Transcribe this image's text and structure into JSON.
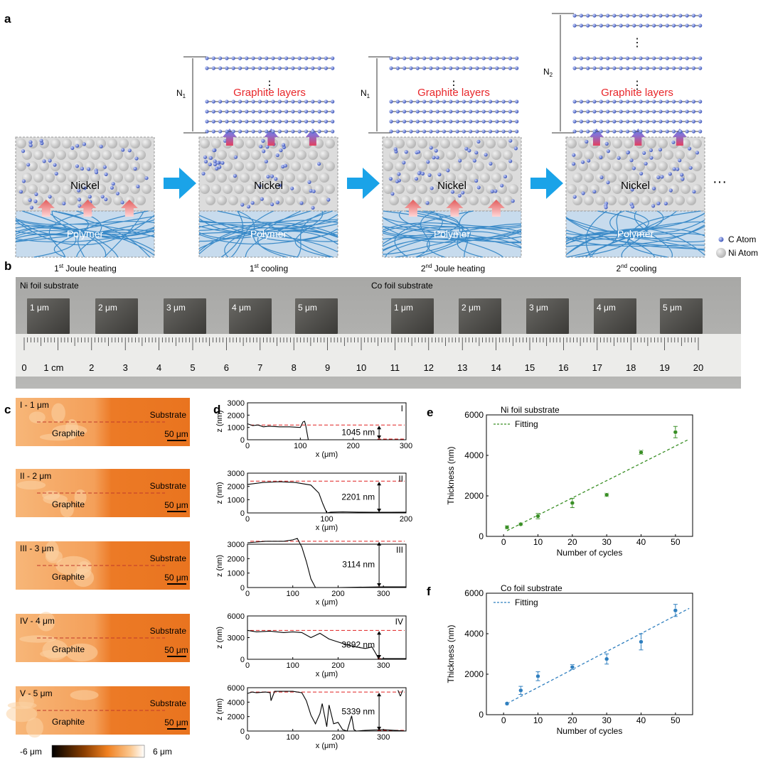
{
  "panel_letters": [
    "a",
    "b",
    "c",
    "d",
    "e",
    "f"
  ],
  "panel_a": {
    "graphite_label": "Graphite layers",
    "nickel_label": "Nickel",
    "polymer_label": "Polymer",
    "n1": "N",
    "n1_sub": "1",
    "n2": "N",
    "n2_sub": "2",
    "stages": [
      {
        "pre": "1",
        "sup": "st",
        "post": " Joule heating"
      },
      {
        "pre": "1",
        "sup": "st",
        "post": " cooling"
      },
      {
        "pre": "2",
        "sup": "nd",
        "post": " Joule heating"
      },
      {
        "pre": "2",
        "sup": "nd",
        "post": " cooling"
      }
    ],
    "ellipsis": "···",
    "vdots": "⋮",
    "legend": {
      "c_atom": "C Atom",
      "ni_atom": "Ni Atom"
    },
    "colors": {
      "arrow": "#1aa3e8",
      "graphite_text": "#e8262a",
      "c_atom": "#5a73c8",
      "polymer": "#3a8ac8"
    }
  },
  "panel_b": {
    "ni_label": "Ni foil substrate",
    "co_label": "Co foil substrate",
    "samples": [
      "1 μm",
      "2 μm",
      "3 μm",
      "4 μm",
      "5 μm",
      "1 μm",
      "2 μm",
      "3 μm",
      "4 μm",
      "5 μm"
    ],
    "ruler_first": "0",
    "ruler_unit_label": "1 cm",
    "ruler_numbers": [
      "2",
      "3",
      "4",
      "5",
      "6",
      "7",
      "8",
      "9",
      "10",
      "11",
      "12",
      "13",
      "14",
      "15",
      "16",
      "17",
      "18",
      "19",
      "20"
    ]
  },
  "panel_c": {
    "images": [
      {
        "label": "I - 1 μm"
      },
      {
        "label": "II - 2 μm"
      },
      {
        "label": "III - 3 μm"
      },
      {
        "label": "IV - 4 μm"
      },
      {
        "label": "V - 5 μm"
      }
    ],
    "substrate": "Substrate",
    "graphite": "Graphite",
    "scale": "50 μm",
    "colorbar_min": "-6 μm",
    "colorbar_max": "6 μm"
  },
  "chart_data": [
    {
      "id": "d-I",
      "type": "line",
      "roman": "I",
      "xlabel": "x (μm)",
      "ylabel": "z (nm)",
      "xlim": [
        0,
        300
      ],
      "ylim": [
        0,
        3000
      ],
      "xticks": [
        0,
        100,
        200,
        300
      ],
      "yticks": [
        0,
        1000,
        2000,
        3000
      ],
      "annotation": "1045 nm",
      "step_height": 1045,
      "reference_line": 1200,
      "x": [
        0,
        10,
        20,
        30,
        40,
        60,
        80,
        100,
        105,
        108,
        110,
        115,
        300
      ],
      "y": [
        1300,
        1150,
        1200,
        1050,
        1100,
        1050,
        1050,
        1000,
        1450,
        1500,
        1200,
        0,
        0
      ]
    },
    {
      "id": "d-II",
      "type": "line",
      "roman": "II",
      "xlabel": "x (μm)",
      "ylabel": "z (nm)",
      "xlim": [
        0,
        200
      ],
      "ylim": [
        0,
        3000
      ],
      "xticks": [
        0,
        100,
        200
      ],
      "yticks": [
        0,
        1000,
        2000,
        3000
      ],
      "annotation": "2201 nm",
      "step_height": 2201,
      "reference_line": 2400,
      "x": [
        0,
        20,
        40,
        60,
        80,
        90,
        95,
        100,
        105,
        120,
        140,
        160,
        180,
        200
      ],
      "y": [
        2150,
        2300,
        2350,
        2300,
        2100,
        1500,
        700,
        0,
        60,
        80,
        60,
        50,
        50,
        60
      ]
    },
    {
      "id": "d-III",
      "type": "line",
      "roman": "III",
      "xlabel": "x (μm)",
      "ylabel": "z (nm)",
      "xlim": [
        0,
        350
      ],
      "ylim": [
        0,
        3000
      ],
      "xticks": [
        0,
        100,
        200,
        300
      ],
      "yticks": [
        0,
        1000,
        2000,
        3000
      ],
      "annotation": "3114 nm",
      "step_height": 3114,
      "reference_line": 3200,
      "x": [
        0,
        20,
        40,
        60,
        80,
        100,
        110,
        120,
        130,
        140,
        150,
        200,
        300,
        350
      ],
      "y": [
        3100,
        3150,
        3200,
        3200,
        3200,
        3300,
        3400,
        2800,
        1800,
        600,
        0,
        0,
        50,
        50
      ]
    },
    {
      "id": "d-IV",
      "type": "line",
      "roman": "IV",
      "xlabel": "x (μm)",
      "ylabel": "z (nm)",
      "xlim": [
        0,
        350
      ],
      "ylim": [
        0,
        6000
      ],
      "xticks": [
        0,
        100,
        200,
        300
      ],
      "yticks": [
        0,
        3000,
        6000
      ],
      "annotation": "3892 nm",
      "step_height": 3892,
      "reference_line": 4000,
      "x": [
        0,
        20,
        50,
        80,
        100,
        120,
        140,
        160,
        180,
        200,
        220,
        240,
        260,
        275,
        285,
        290,
        300,
        350
      ],
      "y": [
        4000,
        3800,
        3900,
        3700,
        3800,
        3700,
        3000,
        3600,
        2800,
        2400,
        2000,
        1700,
        1500,
        1700,
        600,
        0,
        100,
        100
      ]
    },
    {
      "id": "d-V",
      "type": "line",
      "roman": "V",
      "xlabel": "x (μm)",
      "ylabel": "z (nm)",
      "xlim": [
        0,
        350
      ],
      "ylim": [
        0,
        6000
      ],
      "xticks": [
        0,
        100,
        200,
        300
      ],
      "yticks": [
        0,
        2000,
        4000,
        6000
      ],
      "annotation": "5339 nm",
      "step_height": 5339,
      "reference_line": 5400,
      "x": [
        0,
        10,
        20,
        40,
        50,
        52,
        60,
        100,
        120,
        130,
        140,
        150,
        160,
        165,
        175,
        180,
        190,
        200,
        210,
        220,
        230,
        235,
        240,
        260,
        300,
        350
      ],
      "y": [
        5200,
        5400,
        5300,
        5400,
        5300,
        4200,
        5500,
        5500,
        5300,
        4200,
        2200,
        1000,
        2400,
        3800,
        600,
        3600,
        1000,
        1200,
        200,
        0,
        2100,
        200,
        0,
        100,
        200,
        0
      ]
    },
    {
      "id": "e",
      "type": "scatter",
      "title": "Ni foil substrate",
      "legend": [
        "Fitting"
      ],
      "xlabel": "Number of cycles",
      "ylabel": "Thickness (nm)",
      "xlim": [
        -5,
        55
      ],
      "ylim": [
        0,
        6000
      ],
      "xticks": [
        0,
        10,
        20,
        30,
        40,
        50
      ],
      "yticks": [
        0,
        2000,
        4000,
        6000
      ],
      "x": [
        1,
        5,
        10,
        20,
        30,
        40,
        50
      ],
      "y": [
        450,
        600,
        1000,
        1650,
        2050,
        4150,
        5150
      ],
      "err": [
        80,
        60,
        130,
        230,
        80,
        100,
        280
      ],
      "fit": {
        "x": [
          1,
          54
        ],
        "y": [
          280,
          4800
        ]
      },
      "color": "#3a8f26"
    },
    {
      "id": "f",
      "type": "scatter",
      "title": "Co foil substrate",
      "legend": [
        "Fitting"
      ],
      "xlabel": "Number of cycles",
      "ylabel": "Thickness (nm)",
      "xlim": [
        -5,
        55
      ],
      "ylim": [
        0,
        6000
      ],
      "xticks": [
        0,
        10,
        20,
        30,
        40,
        50
      ],
      "yticks": [
        0,
        2000,
        4000,
        6000
      ],
      "x": [
        1,
        5,
        10,
        20,
        30,
        40,
        50
      ],
      "y": [
        550,
        1200,
        1900,
        2350,
        2750,
        3600,
        5150
      ],
      "err": [
        50,
        200,
        220,
        120,
        250,
        400,
        300
      ],
      "fit": {
        "x": [
          1,
          54
        ],
        "y": [
          550,
          5250
        ]
      },
      "color": "#2f7fbf"
    }
  ]
}
